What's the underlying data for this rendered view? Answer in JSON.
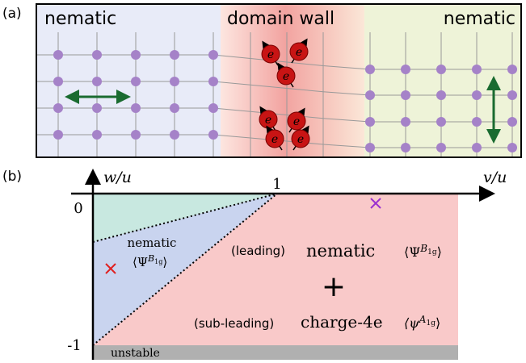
{
  "panel_a": {
    "label": "(a)",
    "left_region": "nematic",
    "middle_region": "domain wall",
    "right_region": "nematic",
    "electron_label": "e"
  },
  "panel_b": {
    "label": "(b)",
    "y_axis_label": "w/u",
    "x_axis_label": "v/u",
    "x_tick": "1",
    "y_tick_top": "0",
    "y_tick_bottom": "-1",
    "left_phase": {
      "name": "nematic",
      "open": "⟨Ψ",
      "sup": "B",
      "subsup": "1g",
      "close": "⟩"
    },
    "leading": {
      "tag": "(leading)",
      "name": "nematic",
      "open": "⟨Ψ",
      "sup": "B",
      "subsup": "1g",
      "close": "⟩"
    },
    "plus": "+",
    "subleading": {
      "tag": "(sub-leading)",
      "name": "charge-4e",
      "open": "⟨ψ",
      "sup": "A",
      "subsup": "1g",
      "close": "⟩"
    },
    "unstable": "unstable"
  }
}
